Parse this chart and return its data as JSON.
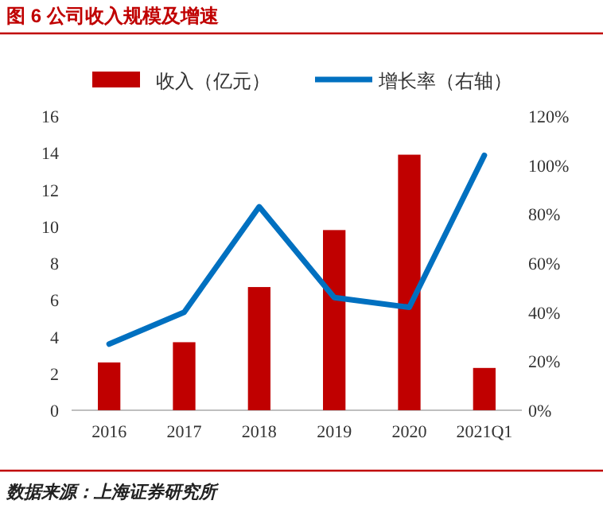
{
  "chart_data": {
    "type": "bar",
    "title": "图 6  公司收入规模及增速",
    "categories": [
      "2016",
      "2017",
      "2018",
      "2019",
      "2020",
      "2021Q1"
    ],
    "series": [
      {
        "name": "收入（亿元）",
        "type": "bar",
        "color": "#c00000",
        "values": [
          2.6,
          3.7,
          6.7,
          9.8,
          13.9,
          2.3
        ]
      },
      {
        "name": "增长率（右轴）",
        "type": "line",
        "axis": "y2",
        "color": "#0070c0",
        "values": [
          27,
          40,
          83,
          46,
          42,
          104
        ]
      }
    ],
    "ylim": [
      0,
      16
    ],
    "yticks": [
      0,
      2,
      4,
      6,
      8,
      10,
      12,
      14,
      16
    ],
    "y2lim": [
      0,
      120
    ],
    "y2ticks": [
      {
        "value": 0,
        "label": "0%"
      },
      {
        "value": 20,
        "label": "20%"
      },
      {
        "value": 40,
        "label": "40%"
      },
      {
        "value": 60,
        "label": "60%"
      },
      {
        "value": 80,
        "label": "80%"
      },
      {
        "value": 100,
        "label": "100%"
      },
      {
        "value": 120,
        "label": "120%"
      }
    ],
    "legend": "top",
    "grid": false,
    "annotations": [
      "数据来源：上海证券研究所"
    ]
  }
}
